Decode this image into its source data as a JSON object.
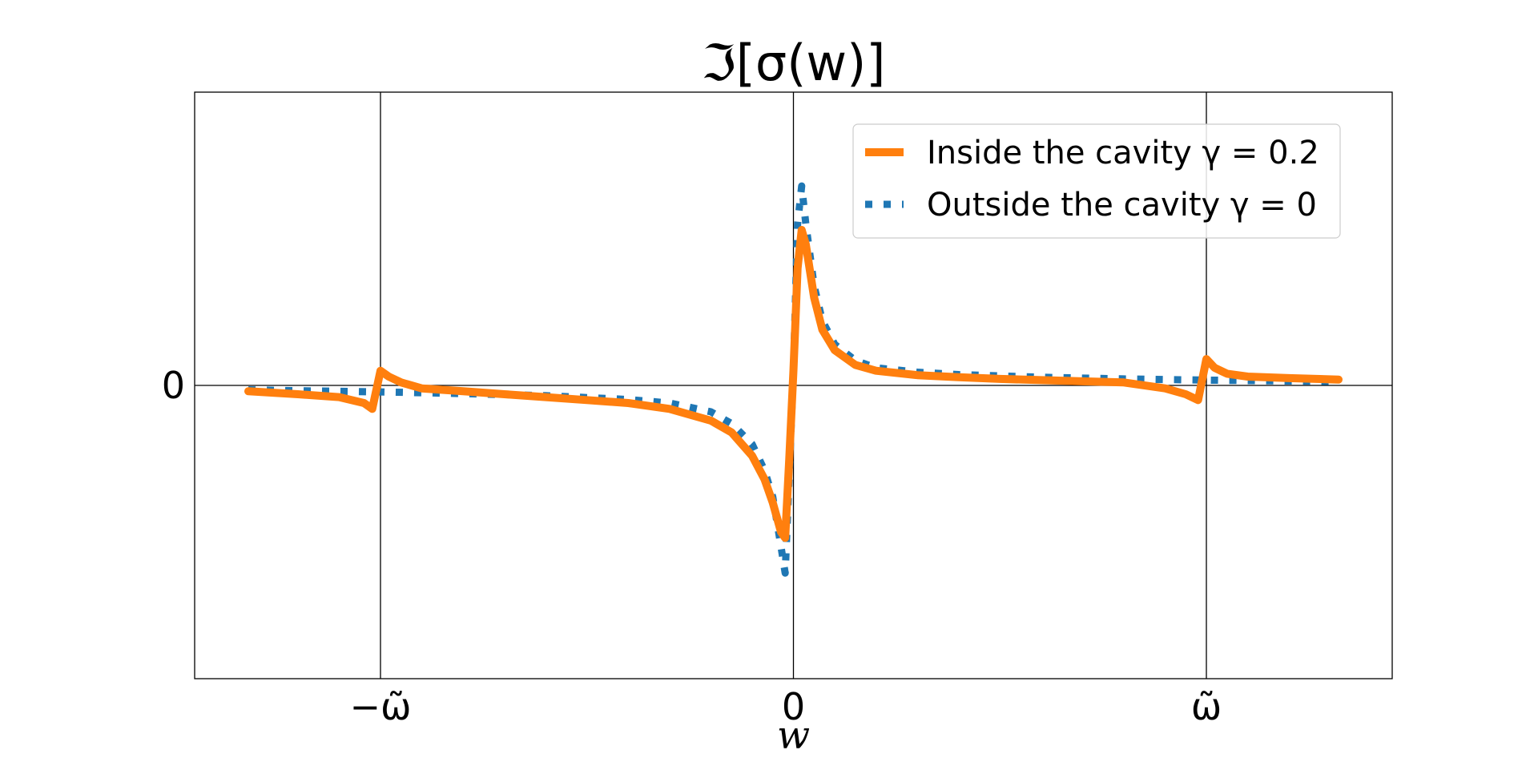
{
  "chart_data": {
    "type": "line",
    "title": "ℑ[σ(w)]",
    "xlabel": "w",
    "ylabel": "",
    "x_ticks": [
      {
        "value": -1,
        "label": "−ω̃"
      },
      {
        "value": 0,
        "label": "0"
      },
      {
        "value": 1,
        "label": "ω̃"
      }
    ],
    "y_ticks": [
      {
        "value": 0,
        "label": "0"
      }
    ],
    "xlim": [
      -1.45,
      1.45
    ],
    "ylim": [
      -1.0,
      1.0
    ],
    "grid": true,
    "legend_position": "top-right",
    "series": [
      {
        "name": "Inside the cavity γ = 0.2",
        "color": "#ff7f0e",
        "style": "solid",
        "x": [
          -1.32,
          -1.2,
          -1.1,
          -1.04,
          -1.02,
          -1.0,
          -0.98,
          -0.95,
          -0.9,
          -0.8,
          -0.7,
          -0.6,
          -0.5,
          -0.4,
          -0.3,
          -0.2,
          -0.15,
          -0.1,
          -0.07,
          -0.05,
          -0.03,
          -0.02,
          -0.01,
          0.0,
          0.01,
          0.02,
          0.03,
          0.05,
          0.07,
          0.1,
          0.15,
          0.2,
          0.3,
          0.4,
          0.5,
          0.6,
          0.7,
          0.8,
          0.9,
          0.95,
          0.98,
          1.0,
          1.02,
          1.05,
          1.1,
          1.2,
          1.32
        ],
        "y": [
          -0.02,
          -0.03,
          -0.04,
          -0.06,
          -0.08,
          0.05,
          0.03,
          0.01,
          -0.01,
          -0.02,
          -0.03,
          -0.04,
          -0.05,
          -0.06,
          -0.08,
          -0.12,
          -0.16,
          -0.24,
          -0.32,
          -0.4,
          -0.5,
          -0.52,
          -0.25,
          0.05,
          0.4,
          0.53,
          0.48,
          0.3,
          0.19,
          0.12,
          0.07,
          0.05,
          0.035,
          0.028,
          0.022,
          0.018,
          0.014,
          0.01,
          -0.01,
          -0.03,
          -0.05,
          0.09,
          0.06,
          0.04,
          0.03,
          0.025,
          0.02
        ]
      },
      {
        "name": "Outside the cavity γ = 0",
        "color": "#1f77b4",
        "style": "dotted",
        "x": [
          -1.32,
          -1.2,
          -1.0,
          -0.8,
          -0.6,
          -0.4,
          -0.3,
          -0.2,
          -0.15,
          -0.1,
          -0.07,
          -0.05,
          -0.03,
          -0.02,
          -0.01,
          0.0,
          0.01,
          0.02,
          0.03,
          0.05,
          0.07,
          0.1,
          0.15,
          0.2,
          0.3,
          0.4,
          0.6,
          0.8,
          1.0,
          1.2,
          1.32
        ],
        "y": [
          -0.015,
          -0.018,
          -0.022,
          -0.028,
          -0.035,
          -0.048,
          -0.06,
          -0.09,
          -0.13,
          -0.2,
          -0.29,
          -0.38,
          -0.55,
          -0.64,
          -0.3,
          0.05,
          0.55,
          0.68,
          0.55,
          0.34,
          0.22,
          0.14,
          0.085,
          0.06,
          0.045,
          0.037,
          0.028,
          0.022,
          0.018,
          0.015,
          0.013
        ]
      }
    ]
  }
}
